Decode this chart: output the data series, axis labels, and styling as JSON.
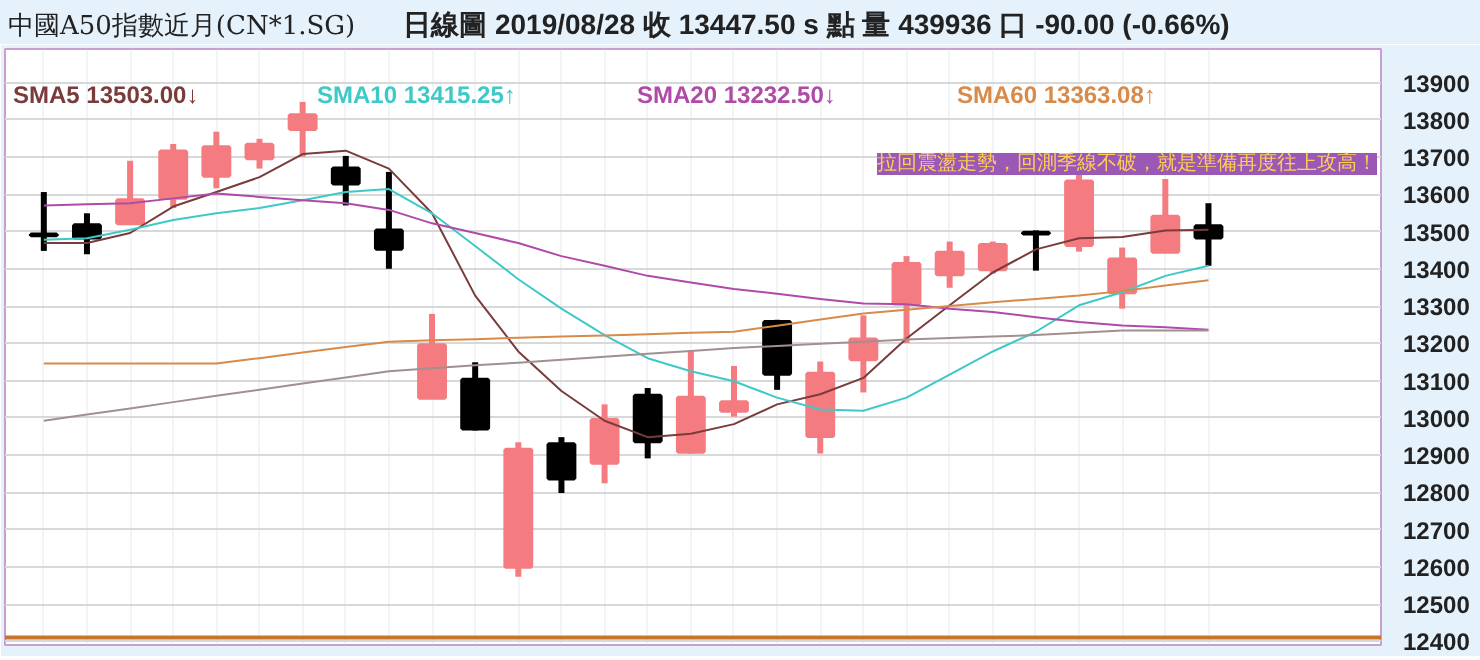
{
  "chart_data": {
    "type": "candlestick",
    "title": "中國A50指數近月(CN*1.SG)",
    "subtitle": "日線圖   2019/08/28  收 13447.50 s 點  量 439936 口  -90.00 (-0.66%)",
    "categories": [
      null,
      null,
      null,
      null,
      null,
      null,
      null,
      null,
      null,
      null,
      null,
      null,
      null,
      null,
      null,
      null,
      null,
      null,
      null,
      null,
      null,
      null,
      null,
      null,
      null,
      null,
      null,
      null
    ],
    "ohlc": [
      [
        13492,
        13606,
        13448,
        13490
      ],
      [
        13517,
        13549,
        13439,
        13484
      ],
      [
        13522,
        13690,
        13522,
        13584
      ],
      [
        13591,
        13735,
        13563,
        13715
      ],
      [
        13650,
        13768,
        13616,
        13726
      ],
      [
        13697,
        13749,
        13669,
        13733
      ],
      [
        13775,
        13848,
        13701,
        13812
      ],
      [
        13669,
        13703,
        13570,
        13629
      ],
      [
        13503,
        13660,
        13400,
        13454
      ],
      [
        13054,
        13279,
        13054,
        13195
      ],
      [
        13102,
        13149,
        12966,
        12971
      ],
      [
        12600,
        12934,
        12573,
        12914
      ],
      [
        12929,
        12948,
        12798,
        12837
      ],
      [
        12879,
        13036,
        12824,
        12994
      ],
      [
        13059,
        13080,
        12891,
        12937
      ],
      [
        12909,
        13181,
        12904,
        13054
      ],
      [
        13019,
        13139,
        13003,
        13042
      ],
      [
        13257,
        13263,
        13075,
        13118
      ],
      [
        12951,
        13151,
        12904,
        13118
      ],
      [
        13157,
        13275,
        13068,
        13210
      ],
      [
        13307,
        13434,
        13201,
        13413
      ],
      [
        13385,
        13473,
        13349,
        13443
      ],
      [
        13399,
        13473,
        13387,
        13464
      ],
      [
        13497,
        13503,
        13395,
        13495
      ],
      [
        13464,
        13652,
        13446,
        13634
      ],
      [
        13337,
        13457,
        13293,
        13425
      ],
      [
        13446,
        13641,
        13446,
        13540
      ],
      [
        13514,
        13576,
        13408,
        13484
      ]
    ],
    "colors": [
      "#000000",
      "#000000",
      "#f47c80",
      "#f47c80",
      "#f47c80",
      "#f47c80",
      "#f47c80",
      "#000000",
      "#000000",
      "#f47c80",
      "#000000",
      "#f47c80",
      "#000000",
      "#f47c80",
      "#000000",
      "#f47c80",
      "#f47c80",
      "#000000",
      "#f47c80",
      "#f47c80",
      "#f47c80",
      "#f47c80",
      "#f47c80",
      "#000000",
      "#f47c80",
      "#f47c80",
      "#f47c80",
      "#000000"
    ],
    "series": [
      {
        "name": "SMA5 13503.00↓",
        "color": "#7a3b3b",
        "type": "line",
        "values": [
          13469,
          13469,
          13496,
          13567,
          13606,
          13646,
          13708,
          13717,
          13669,
          13549,
          13328,
          13178,
          13072,
          12992,
          12948,
          12957,
          12983,
          13036,
          13063,
          13107,
          13213,
          13302,
          13390,
          13452,
          13482,
          13485,
          13503,
          13505
        ]
      },
      {
        "name": "SMA10 13415.25↑",
        "color": "#3fc8c8",
        "type": "line",
        "values": [
          13478,
          13482,
          13505,
          13531,
          13549,
          13563,
          13584,
          13606,
          13614,
          13549,
          13461,
          13372,
          13293,
          13222,
          13160,
          13125,
          13098,
          13054,
          13022,
          13019,
          13054,
          13116,
          13178,
          13231,
          13302,
          13337,
          13381,
          13408
        ]
      },
      {
        "name": "SMA20 13232.50↓",
        "color": "#b04aa8",
        "type": "line",
        "values": [
          13570,
          13573,
          13576,
          13589,
          13602,
          13593,
          13584,
          13576,
          13558,
          13522,
          13496,
          13469,
          13434,
          13408,
          13381,
          13363,
          13346,
          13333,
          13319,
          13307,
          13305,
          13293,
          13284,
          13270,
          13257,
          13248,
          13243,
          13236
        ]
      },
      {
        "name": "SMA60 13363.08↑",
        "color": "#d88a4a",
        "type": "line",
        "values": [
          13146,
          13146,
          13146,
          13146,
          13146,
          13160,
          13175,
          13190,
          13204,
          13208,
          13211,
          13215,
          13218,
          13221,
          13224,
          13228,
          13231,
          13247,
          13264,
          13280,
          13290,
          13300,
          13310,
          13319,
          13328,
          13340,
          13355,
          13369
        ]
      },
      {
        "color": "#a09090",
        "type": "line",
        "values": [
          12992,
          13009,
          13025,
          13042,
          13059,
          13075,
          13092,
          13108,
          13125,
          13133,
          13141,
          13148,
          13156,
          13164,
          13172,
          13179,
          13187,
          13193,
          13199,
          13204,
          13210,
          13214,
          13218,
          13222,
          13228,
          13234,
          13234,
          13234
        ]
      }
    ],
    "ref_lines": [
      {
        "axis": "y",
        "value": 12410,
        "color": "#c8742a"
      }
    ],
    "annotations": [
      "拉回震盪走勢，回測季線不破，就是準備再度往上攻高！"
    ],
    "ylim": [
      12390,
      13990
    ],
    "yticks": [
      12400,
      12500,
      12600,
      12700,
      12800,
      12900,
      13000,
      13100,
      13200,
      13300,
      13400,
      13500,
      13600,
      13700,
      13800,
      13900
    ],
    "tick_labels": "y",
    "grid": true
  }
}
